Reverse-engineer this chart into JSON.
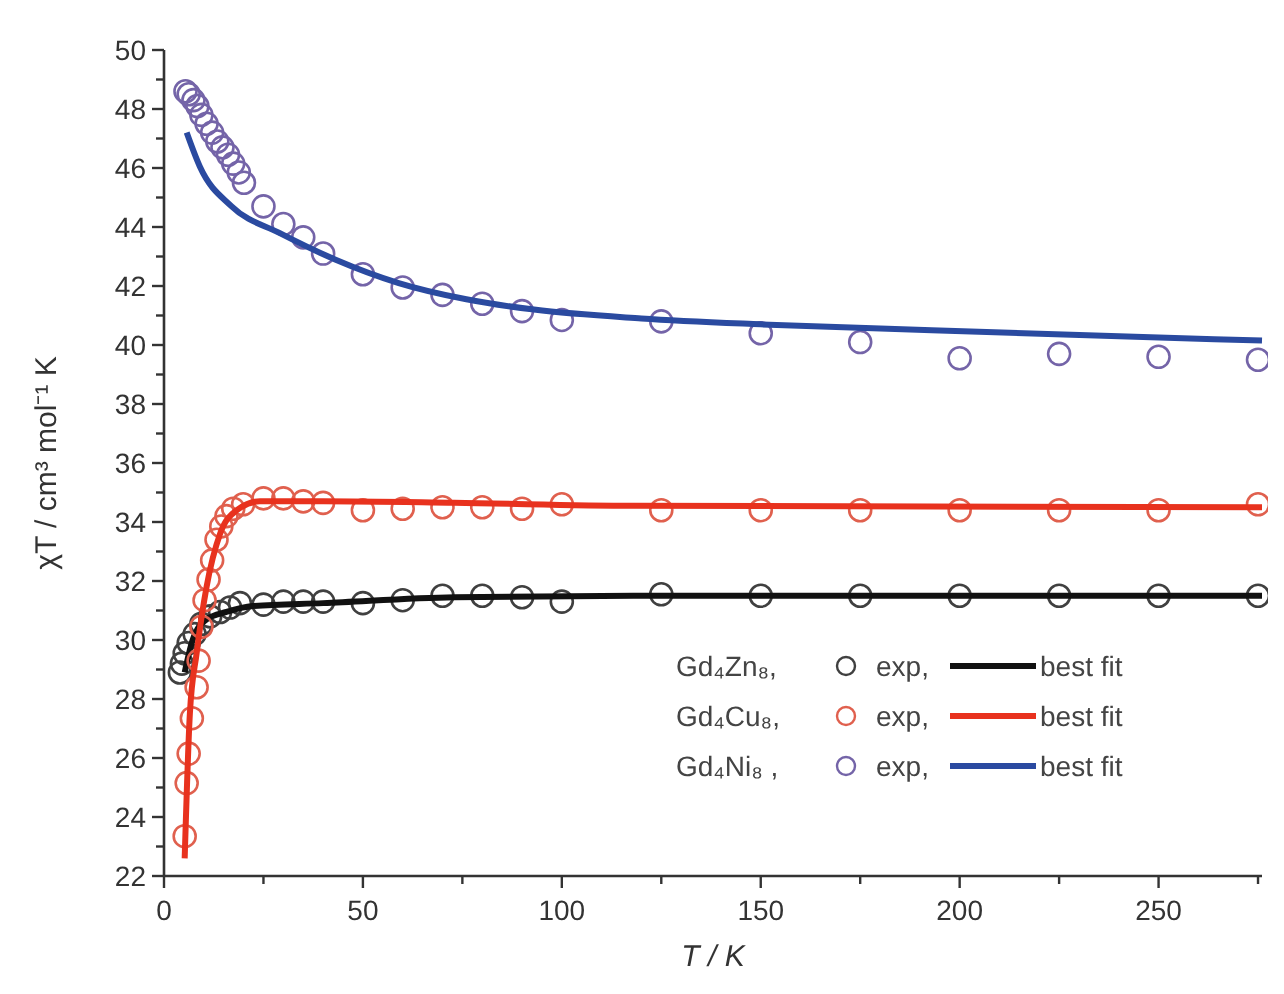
{
  "chart_data": {
    "type": "scatter",
    "xlabel": "T / K",
    "ylabel": "χT / cm³ mol⁻¹ K",
    "xlim": [
      0,
      276
    ],
    "ylim": [
      22,
      50
    ],
    "xticks": [
      0,
      {
        "value": 25,
        "label": null
      },
      50,
      {
        "value": 75,
        "label": null
      },
      100,
      {
        "value": 125,
        "label": null
      },
      150,
      {
        "value": 175,
        "label": null
      },
      200,
      {
        "value": 225,
        "label": null
      },
      250,
      {
        "value": 275,
        "label": null
      }
    ],
    "yticks": [
      22,
      {
        "value": 23,
        "label": null
      },
      24,
      {
        "value": 25,
        "label": null
      },
      26,
      {
        "value": 27,
        "label": null
      },
      28,
      {
        "value": 29,
        "label": null
      },
      30,
      {
        "value": 31,
        "label": null
      },
      32,
      {
        "value": 33,
        "label": null
      },
      34,
      {
        "value": 35,
        "label": null
      },
      36,
      {
        "value": 37,
        "label": null
      },
      38,
      {
        "value": 39,
        "label": null
      },
      40,
      {
        "value": 41,
        "label": null
      },
      42,
      {
        "value": 43,
        "label": null
      },
      44,
      {
        "value": 45,
        "label": null
      },
      46,
      {
        "value": 47,
        "label": null
      },
      48,
      {
        "value": 49,
        "label": null
      },
      50
    ],
    "grid": false,
    "legend": "bottom right",
    "annotations": [
      "Gd₄Zn₈,",
      "Gd₄Cu₈,",
      "Gd₄Ni₈ ,"
    ],
    "series": [
      {
        "name": "exp,",
        "marker": "circle",
        "color": "#404040",
        "x": [
          4.0,
          4.5,
          5.2,
          6.2,
          7.7,
          9.4,
          11.6,
          14.1,
          16.6,
          19.1,
          25,
          30,
          35,
          40,
          50,
          60,
          70,
          80,
          90,
          100,
          125,
          150,
          175,
          200,
          225,
          250,
          275
        ],
        "values": [
          28.9,
          29.2,
          29.55,
          29.9,
          30.2,
          30.55,
          30.8,
          30.95,
          31.1,
          31.25,
          31.2,
          31.3,
          31.3,
          31.3,
          31.25,
          31.35,
          31.5,
          31.5,
          31.45,
          31.3,
          31.55,
          31.5,
          31.5,
          31.5,
          31.5,
          31.5,
          31.5
        ]
      },
      {
        "name": "best fit",
        "type": "line",
        "color": "#111111",
        "x": [
          5.2,
          7.2,
          10.7,
          15.7,
          22.3,
          40,
          73,
          118,
          276
        ],
        "values": [
          28.9,
          30.0,
          30.7,
          30.95,
          31.15,
          31.25,
          31.45,
          31.5,
          31.5
        ]
      },
      {
        "name": "exp,",
        "marker": "circle",
        "color": "#e0604e",
        "x": [
          5.2,
          5.7,
          6.2,
          7.0,
          8.2,
          8.7,
          9.4,
          10.2,
          11.2,
          12.1,
          13.2,
          14.4,
          15.7,
          17.4,
          19.9,
          25,
          30,
          35,
          40,
          50,
          60,
          70,
          80,
          90,
          100,
          125,
          150,
          175,
          200,
          225,
          250,
          275
        ],
        "values": [
          23.35,
          25.15,
          26.15,
          27.35,
          28.4,
          29.3,
          30.45,
          31.35,
          32.05,
          32.7,
          33.4,
          33.85,
          34.2,
          34.45,
          34.6,
          34.8,
          34.8,
          34.7,
          34.65,
          34.4,
          34.45,
          34.5,
          34.5,
          34.45,
          34.6,
          34.4,
          34.4,
          34.4,
          34.4,
          34.4,
          34.4,
          34.6
        ]
      },
      {
        "name": "best fit",
        "type": "line",
        "color": "#e8321e",
        "x": [
          5.2,
          6.5,
          8.2,
          10.7,
          14.1,
          18.3,
          24.1,
          40,
          73,
          118,
          276
        ],
        "values": [
          22.6,
          27.5,
          29.55,
          31.8,
          33.6,
          34.4,
          34.7,
          34.7,
          34.65,
          34.55,
          34.5
        ]
      },
      {
        "name": "exp,",
        "marker": "circle",
        "color": "#7464a8",
        "x": [
          5.4,
          6.2,
          7.4,
          8.4,
          9.4,
          10.7,
          12.1,
          13.4,
          14.7,
          16.1,
          17.4,
          18.8,
          20.1,
          25,
          30,
          35,
          40,
          50,
          60,
          70,
          80,
          90,
          100,
          125,
          150,
          175,
          200,
          225,
          250,
          275
        ],
        "values": [
          48.6,
          48.5,
          48.3,
          48.1,
          47.8,
          47.5,
          47.2,
          46.9,
          46.7,
          46.45,
          46.15,
          45.85,
          45.5,
          44.7,
          44.1,
          43.65,
          43.1,
          42.4,
          41.95,
          41.7,
          41.4,
          41.15,
          40.85,
          40.8,
          40.4,
          40.1,
          39.55,
          39.7,
          39.6,
          39.5
        ]
      },
      {
        "name": "best fit",
        "type": "line",
        "color": "#2a4aa0",
        "x": [
          5.7,
          9,
          17,
          29,
          43,
          59,
          76,
          93,
          120,
          150,
          193,
          276
        ],
        "values": [
          47.2,
          46.05,
          44.7,
          43.8,
          42.9,
          42.1,
          41.55,
          41.2,
          40.9,
          40.7,
          40.5,
          40.15
        ]
      }
    ]
  }
}
